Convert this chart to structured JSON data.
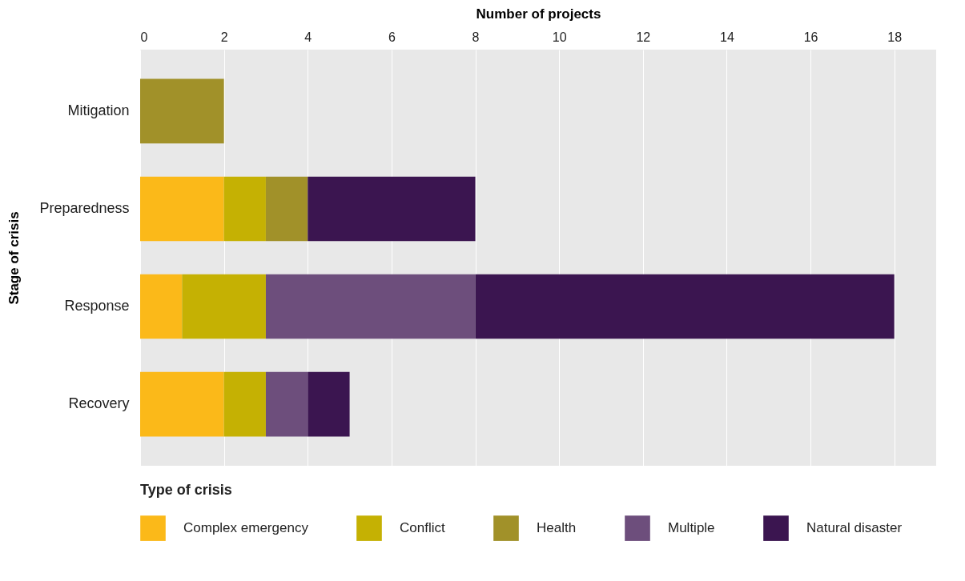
{
  "chart_data": {
    "type": "bar",
    "orientation": "horizontal",
    "stacked": true,
    "xlabel": "Number of projects",
    "ylabel": "Stage of crisis",
    "legend_title": "Type of crisis",
    "legend": "bottom",
    "grid": "x",
    "categories": [
      "Mitigation",
      "Preparedness",
      "Response",
      "Recovery"
    ],
    "xlim": [
      0,
      19
    ],
    "xticks": [
      0,
      2,
      4,
      6,
      8,
      10,
      12,
      14,
      16,
      18
    ],
    "series": [
      {
        "name": "Complex emergency",
        "color": "#fbb919",
        "values": [
          null,
          2,
          1,
          2
        ]
      },
      {
        "name": "Conflict",
        "color": "#c5b103",
        "values": [
          null,
          1,
          2,
          1
        ]
      },
      {
        "name": "Health",
        "color": "#a19129",
        "values": [
          2,
          1,
          null,
          null
        ]
      },
      {
        "name": "Multiple",
        "color": "#6d4e7c",
        "values": [
          null,
          null,
          5,
          1
        ]
      },
      {
        "name": "Natural disaster",
        "color": "#3b1550",
        "values": [
          null,
          4,
          10,
          1
        ]
      }
    ]
  }
}
